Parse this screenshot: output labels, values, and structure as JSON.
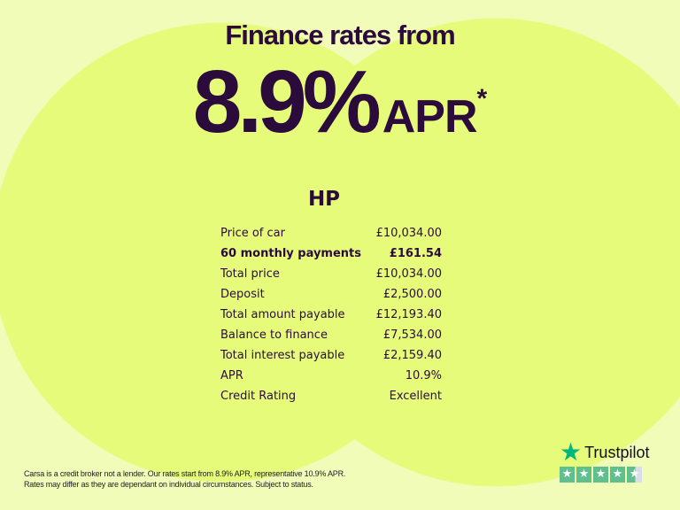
{
  "headline": "Finance rates from",
  "rate": {
    "value": "8.9%",
    "unit": "APR",
    "asterisk": "*"
  },
  "section_title": "HP",
  "rows": [
    {
      "label": "Price of car",
      "value": "£10,034.00",
      "bold": false
    },
    {
      "label": "60 monthly payments",
      "value": "£161.54",
      "bold": true
    },
    {
      "label": "Total price",
      "value": "£10,034.00",
      "bold": false
    },
    {
      "label": "Deposit",
      "value": "£2,500.00",
      "bold": false
    },
    {
      "label": "Total amount payable",
      "value": "£12,193.40",
      "bold": false
    },
    {
      "label": "Balance to finance",
      "value": "£7,534.00",
      "bold": false
    },
    {
      "label": "Total interest payable",
      "value": "£2,159.40",
      "bold": false
    },
    {
      "label": "APR",
      "value": "10.9%",
      "bold": false
    },
    {
      "label": "Credit Rating",
      "value": "Excellent",
      "bold": false
    }
  ],
  "disclaimer": {
    "line1": "Carsa is a credit broker not a lender. Our rates start from 8.9% APR, representative 10.9% APR.",
    "line2": "Rates may differ as they are dependant on individual circumstances. Subject to status."
  },
  "trustpilot": {
    "name": "Trustpilot",
    "rating_stars": 4.5,
    "max_stars": 5,
    "icon": "star-icon"
  },
  "colors": {
    "text": "#2b0b3b",
    "background": "#f1fcb8",
    "circles": "#e6fb7a",
    "trustpilot_green": "#00b67a"
  }
}
